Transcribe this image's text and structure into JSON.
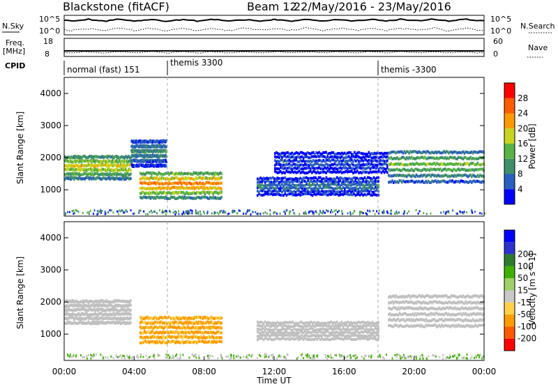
{
  "header": {
    "station": "Blackstone",
    "algorithm": "(fitACF)",
    "beam": "Beam 12",
    "date_range": "22/May/2016 - 23/May/2016"
  },
  "top_panels": {
    "nsky_label": "N.Sky",
    "nsearch_label": "N.Search",
    "nsky_ticks": [
      "10^5",
      "10^0"
    ],
    "nsearch_ticks": [
      "10^5",
      "10^0"
    ],
    "freq_label": "Freq.",
    "freq_unit": "[MHz]",
    "freq_ticks": [
      "18",
      "8"
    ],
    "nave_label": "Nave",
    "nave_ticks": [
      "60",
      "0"
    ],
    "cpid_label": "CPID",
    "cpid_entries": [
      "normal (fast) 151",
      "themis 3300",
      "themis -3300"
    ]
  },
  "colors": {
    "power_scale": [
      "#0000ff",
      "#2a5fbf",
      "#3f8f6a",
      "#59b246",
      "#c8d41e",
      "#ff9b00",
      "#ff5b00",
      "#ff0000"
    ],
    "velocity_scale": [
      "#ff0000",
      "#ff5a00",
      "#ff9c00",
      "#ffd14a",
      "#c8c8c8",
      "#a0d06a",
      "#40b000",
      "#2e7a2e",
      "#3030cc",
      "#0000ff"
    ],
    "ground_scatter": "#c0c0c0"
  },
  "chart_data": [
    {
      "type": "heatmap",
      "panel": "power",
      "ylabel": "Slant Range [km]",
      "colorbar_label": "Power [dB]",
      "colorbar_ticks": [
        "4",
        "8",
        "12",
        "16",
        "20",
        "24",
        "28"
      ],
      "ylim": [
        180,
        4500
      ],
      "yticks": [
        "1000",
        "2000",
        "3000",
        "4000"
      ],
      "xlim": [
        "00:00",
        "24:00"
      ],
      "scatter_regions": [
        {
          "t_start": 0.0,
          "t_end": 3.8,
          "range_low": 1300,
          "range_high": 2100,
          "power_db": 18
        },
        {
          "t_start": 3.8,
          "t_end": 5.8,
          "range_low": 1700,
          "range_high": 2600,
          "power_db": 10
        },
        {
          "t_start": 4.3,
          "t_end": 9.0,
          "range_low": 700,
          "range_high": 1600,
          "power_db": 22
        },
        {
          "t_start": 11.0,
          "t_end": 18.0,
          "range_low": 800,
          "range_high": 1400,
          "power_db": 8
        },
        {
          "t_start": 12.0,
          "t_end": 18.5,
          "range_low": 1500,
          "range_high": 2200,
          "power_db": 6
        },
        {
          "t_start": 18.5,
          "t_end": 24.0,
          "range_low": 1200,
          "range_high": 2300,
          "power_db": 14
        }
      ]
    },
    {
      "type": "heatmap",
      "panel": "velocity",
      "ylabel": "Slant Range [km]",
      "colorbar_label": "Velocity [m s^-1]",
      "colorbar_ticks": [
        "-200",
        "-100",
        "-50",
        "-15",
        "15",
        "50",
        "100",
        "200"
      ],
      "ylim": [
        180,
        4500
      ],
      "yticks": [
        "1000",
        "2000",
        "3000",
        "4000"
      ],
      "xlabel": "Time UT",
      "xticks": [
        "00:00",
        "04:00",
        "08:00",
        "12:00",
        "16:00",
        "20:00",
        "00:00"
      ],
      "xlim": [
        "00:00",
        "24:00"
      ],
      "scatter_regions": [
        {
          "t_start": 0.0,
          "t_end": 3.8,
          "range_low": 1300,
          "range_high": 2100,
          "velocity": 0,
          "ground_scatter": true
        },
        {
          "t_start": 4.3,
          "t_end": 9.0,
          "range_low": 700,
          "range_high": 1600,
          "velocity": -60
        },
        {
          "t_start": 11.0,
          "t_end": 18.0,
          "range_low": 800,
          "range_high": 1400,
          "velocity": 0,
          "ground_scatter": true
        },
        {
          "t_start": 18.5,
          "t_end": 24.0,
          "range_low": 1200,
          "range_high": 2300,
          "velocity": 0,
          "ground_scatter": true
        }
      ]
    }
  ]
}
